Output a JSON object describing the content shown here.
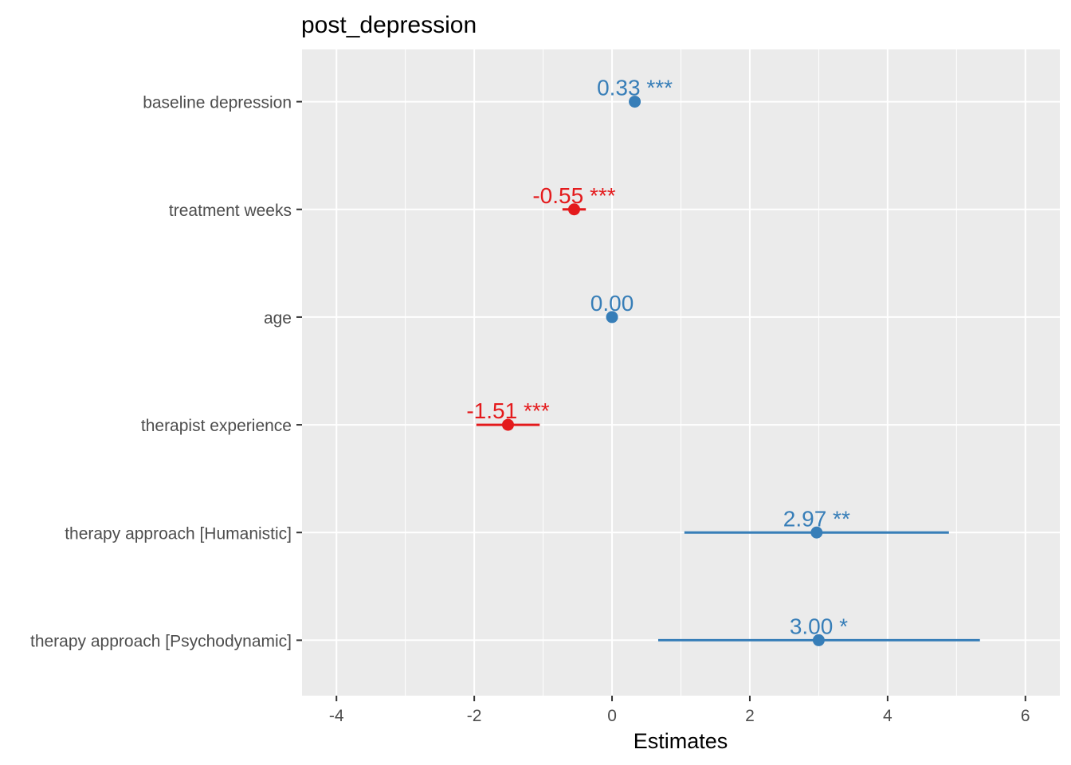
{
  "chart_data": {
    "type": "forest",
    "title": "post_depression",
    "xlabel": "Estimates",
    "ylabel": "",
    "xlim": [
      -4.5,
      6.5
    ],
    "x_ticks": [
      -4,
      -2,
      0,
      2,
      4,
      6
    ],
    "x_tick_labels": [
      "-4",
      "-2",
      "0",
      "2",
      "4",
      "6"
    ],
    "grid": true,
    "colors": {
      "positive": "#377eb8",
      "negative": "#e41a1c",
      "panel": "#ebebeb",
      "grid": "#ffffff"
    },
    "terms": [
      {
        "label": "baseline depression",
        "estimate": 0.33,
        "ci_low": 0.3,
        "ci_high": 0.36,
        "value_label": "0.33 ***",
        "direction": "positive"
      },
      {
        "label": "treatment weeks",
        "estimate": -0.55,
        "ci_low": -0.72,
        "ci_high": -0.38,
        "value_label": "-0.55 ***",
        "direction": "negative"
      },
      {
        "label": "age",
        "estimate": 0.0,
        "ci_low": -0.04,
        "ci_high": 0.04,
        "value_label": "0.00",
        "direction": "positive"
      },
      {
        "label": "therapist experience",
        "estimate": -1.51,
        "ci_low": -1.97,
        "ci_high": -1.05,
        "value_label": "-1.51 ***",
        "direction": "negative"
      },
      {
        "label": "therapy approach [Humanistic]",
        "estimate": 2.97,
        "ci_low": 1.05,
        "ci_high": 4.89,
        "value_label": "2.97 **",
        "direction": "positive"
      },
      {
        "label": "therapy approach [Psychodynamic]",
        "estimate": 3.0,
        "ci_low": 0.67,
        "ci_high": 5.34,
        "value_label": "3.00 *",
        "direction": "positive"
      }
    ]
  }
}
